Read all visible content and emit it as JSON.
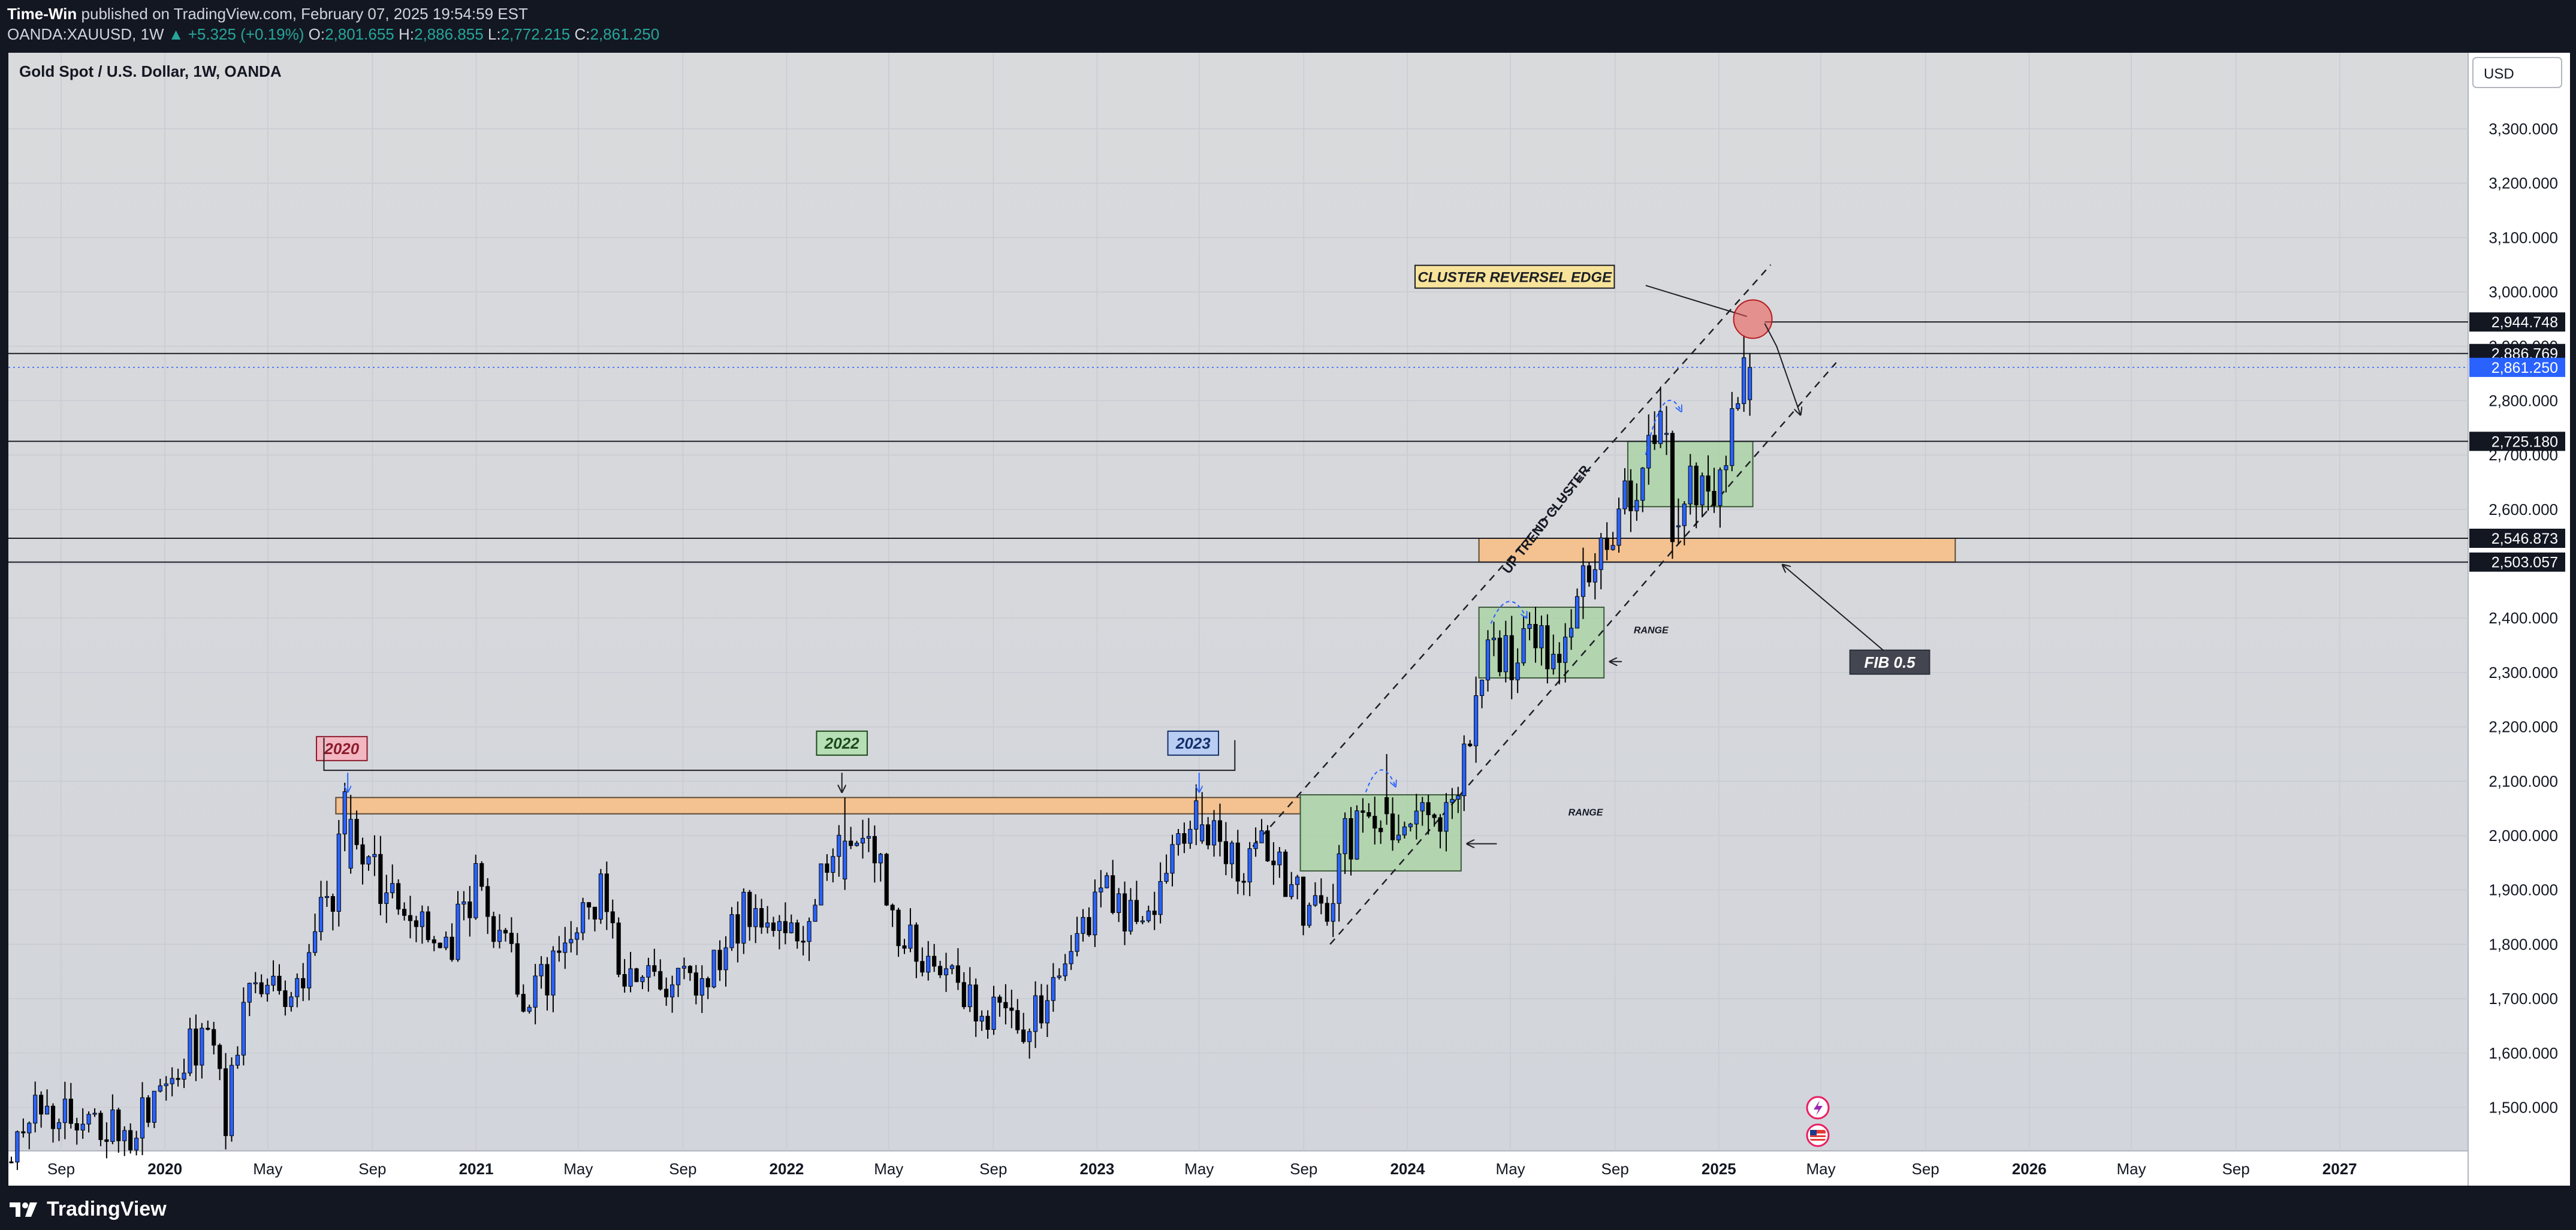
{
  "header": {
    "author": "Time-Win",
    "published_text": "published on TradingView.com, February 07, 2025 19:54:59 EST",
    "symbol": "OANDA:XAUUSD, 1W",
    "change": "▲ +5.325 (+0.19%)",
    "o_label": "O:",
    "o_value": "2,801.655",
    "h_label": "H:",
    "h_value": "2,886.855",
    "l_label": "L:",
    "l_value": "2,772.215",
    "c_label": "C:",
    "c_value": "2,861.250"
  },
  "chart_title": "Gold Spot / U.S. Dollar, 1W, OANDA",
  "currency_button": "USD",
  "footer": {
    "brand": "TradingView"
  },
  "colors": {
    "background": "#d6d8dd",
    "up": "#2962ff",
    "down": "#000000",
    "zone_orange": "#f4c18c",
    "zone_green": "#a9d3a4",
    "price_tag_current": "#2962ff"
  },
  "chart_data": {
    "type": "candlestick",
    "title": "Gold Spot / U.S. Dollar, 1W, OANDA",
    "ylim": [
      1420,
      3440
    ],
    "y_ticks": [
      1500,
      1600,
      1700,
      1800,
      1900,
      2000,
      2100,
      2200,
      2300,
      2400,
      2500,
      2600,
      2700,
      2800,
      2900,
      3000,
      3100,
      3200,
      3300
    ],
    "y_tick_labels": [
      "1,500.000",
      "1,600.000",
      "1,700.000",
      "1,800.000",
      "1,900.000",
      "2,000.000",
      "2,100.000",
      "2,200.000",
      "2,300.000",
      "2,400.000",
      "2,500.000",
      "2,600.000",
      "2,700.000",
      "2,800.000",
      "2,900.000",
      "3,000.000",
      "3,100.000",
      "3,200.000",
      "3,300.000"
    ],
    "xlim": [
      "2019-07-01",
      "2027-06-01"
    ],
    "x_ticks": [
      {
        "date": "2019-09-01",
        "label": "Sep",
        "bold": false
      },
      {
        "date": "2020-01-01",
        "label": "2020",
        "bold": true
      },
      {
        "date": "2020-05-01",
        "label": "May",
        "bold": false
      },
      {
        "date": "2020-09-01",
        "label": "Sep",
        "bold": false
      },
      {
        "date": "2021-01-01",
        "label": "2021",
        "bold": true
      },
      {
        "date": "2021-05-01",
        "label": "May",
        "bold": false
      },
      {
        "date": "2021-09-01",
        "label": "Sep",
        "bold": false
      },
      {
        "date": "2022-01-01",
        "label": "2022",
        "bold": true
      },
      {
        "date": "2022-05-01",
        "label": "May",
        "bold": false
      },
      {
        "date": "2022-09-01",
        "label": "Sep",
        "bold": false
      },
      {
        "date": "2023-01-01",
        "label": "2023",
        "bold": true
      },
      {
        "date": "2023-05-01",
        "label": "May",
        "bold": false
      },
      {
        "date": "2023-09-01",
        "label": "Sep",
        "bold": false
      },
      {
        "date": "2024-01-01",
        "label": "2024",
        "bold": true
      },
      {
        "date": "2024-05-01",
        "label": "May",
        "bold": false
      },
      {
        "date": "2024-09-01",
        "label": "Sep",
        "bold": false
      },
      {
        "date": "2025-01-01",
        "label": "2025",
        "bold": true
      },
      {
        "date": "2025-05-01",
        "label": "May",
        "bold": false
      },
      {
        "date": "2025-09-01",
        "label": "Sep",
        "bold": false
      },
      {
        "date": "2026-01-01",
        "label": "2026",
        "bold": true
      },
      {
        "date": "2026-05-01",
        "label": "May",
        "bold": false
      },
      {
        "date": "2026-09-01",
        "label": "Sep",
        "bold": false
      },
      {
        "date": "2027-01-01",
        "label": "2027",
        "bold": true
      }
    ],
    "price_path": [
      [
        "2019-07-01",
        1400
      ],
      [
        "2019-08-10",
        1505
      ],
      [
        "2019-10-01",
        1490
      ],
      [
        "2019-11-25",
        1460
      ],
      [
        "2020-01-06",
        1560
      ],
      [
        "2020-02-24",
        1640
      ],
      [
        "2020-03-16",
        1480
      ],
      [
        "2020-04-13",
        1720
      ],
      [
        "2020-06-01",
        1700
      ],
      [
        "2020-07-20",
        1900
      ],
      [
        "2020-08-03",
        2040
      ],
      [
        "2020-09-28",
        1870
      ],
      [
        "2020-11-09",
        1850
      ],
      [
        "2020-11-30",
        1780
      ],
      [
        "2021-01-04",
        1920
      ],
      [
        "2021-03-08",
        1690
      ],
      [
        "2021-05-31",
        1905
      ],
      [
        "2021-06-21",
        1770
      ],
      [
        "2021-08-09",
        1740
      ],
      [
        "2021-09-27",
        1745
      ],
      [
        "2021-11-15",
        1860
      ],
      [
        "2021-12-20",
        1800
      ],
      [
        "2022-01-24",
        1840
      ],
      [
        "2022-03-07",
        1990
      ],
      [
        "2022-04-18",
        1960
      ],
      [
        "2022-05-16",
        1810
      ],
      [
        "2022-07-04",
        1760
      ],
      [
        "2022-09-26",
        1640
      ],
      [
        "2022-11-07",
        1680
      ],
      [
        "2023-01-09",
        1900
      ],
      [
        "2023-02-27",
        1820
      ],
      [
        "2023-04-10",
        2000
      ],
      [
        "2023-05-08",
        2030
      ],
      [
        "2023-06-26",
        1920
      ],
      [
        "2023-07-17",
        1970
      ],
      [
        "2023-08-21",
        1900
      ],
      [
        "2023-10-02",
        1820
      ],
      [
        "2023-10-23",
        1990
      ],
      [
        "2023-12-04",
        2040
      ],
      [
        "2024-01-15",
        2020
      ],
      [
        "2024-02-19",
        2030
      ],
      [
        "2024-03-04",
        2100
      ],
      [
        "2024-04-08",
        2360
      ],
      [
        "2024-05-06",
        2320
      ],
      [
        "2024-05-27",
        2360
      ],
      [
        "2024-06-24",
        2320
      ],
      [
        "2024-07-15",
        2420
      ],
      [
        "2024-08-19",
        2510
      ],
      [
        "2024-09-23",
        2640
      ],
      [
        "2024-10-28",
        2740
      ],
      [
        "2024-11-11",
        2570
      ],
      [
        "2024-11-25",
        2650
      ],
      [
        "2024-12-23",
        2620
      ],
      [
        "2025-01-13",
        2700
      ],
      [
        "2025-02-03",
        2861.25
      ]
    ],
    "highlight_candles": [
      {
        "date": "2020-08-03",
        "open": 1940,
        "high": 2075,
        "low": 1930,
        "close": 2030
      },
      {
        "date": "2022-03-07",
        "open": 1920,
        "high": 2070,
        "low": 1900,
        "close": 1990
      },
      {
        "date": "2023-05-01",
        "open": 1990,
        "high": 2080,
        "low": 1985,
        "close": 2020
      },
      {
        "date": "2023-12-04",
        "open": 2070,
        "high": 2150,
        "low": 2020,
        "close": 2040
      },
      {
        "date": "2024-10-28",
        "open": 2740,
        "high": 2790,
        "low": 2700,
        "close": 2740
      },
      {
        "date": "2024-11-11",
        "open": 2570,
        "high": 2620,
        "low": 2536,
        "close": 2570
      },
      {
        "date": "2025-02-03",
        "open": 2801.655,
        "high": 2886.855,
        "low": 2772.215,
        "close": 2861.25
      }
    ],
    "horizontal_lines": [
      {
        "price": 2944.748,
        "label": "2,944.748",
        "x_start": "2025-02-24"
      },
      {
        "price": 2886.769,
        "label": "2,886.769",
        "x_start": "2019-07-01"
      },
      {
        "price": 2725.18,
        "label": "2,725.180",
        "x_start": "2019-07-01"
      },
      {
        "price": 2546.873,
        "label": "2,546.873",
        "x_start": "2019-07-01"
      },
      {
        "price": 2503.057,
        "label": "2,503.057",
        "x_start": "2019-07-01"
      }
    ],
    "current_price": {
      "price": 2861.25,
      "label": "2,861.250"
    },
    "zones": [
      {
        "type": "resistance",
        "color": "orange",
        "x1": "2020-07-20",
        "x2": "2023-08-28",
        "y1": 2040,
        "y2": 2070
      },
      {
        "type": "fib",
        "color": "orange",
        "x1": "2024-03-25",
        "x2": "2025-10-06",
        "y1": 2503.057,
        "y2": 2546.873
      },
      {
        "type": "range",
        "color": "green",
        "x1": "2023-08-28",
        "x2": "2024-03-04",
        "y1": 1935,
        "y2": 2075
      },
      {
        "type": "range",
        "color": "green",
        "x1": "2024-03-25",
        "x2": "2024-08-19",
        "y1": 2290,
        "y2": 2420
      },
      {
        "type": "range",
        "color": "green",
        "x1": "2024-09-16",
        "x2": "2025-02-10",
        "y1": 2605,
        "y2": 2725
      }
    ],
    "channel": {
      "lower": [
        [
          "2023-10-02",
          1800
        ],
        [
          "2025-05-19",
          2870
        ]
      ],
      "upper": [
        [
          "2023-07-03",
          1980
        ],
        [
          "2025-03-03",
          3050
        ]
      ]
    },
    "annotations": [
      {
        "text": "2020",
        "style": "red",
        "x": "2020-07-27",
        "y": 2160
      },
      {
        "text": "2022",
        "style": "green",
        "x": "2022-03-07",
        "y": 2170
      },
      {
        "text": "2023",
        "style": "blue",
        "x": "2023-04-24",
        "y": 2170
      },
      {
        "text": "UP TREND CLUSTER",
        "style": "rotated",
        "x": "2024-04-29",
        "y": 2480
      },
      {
        "text": "RANGE",
        "style": "plain",
        "x": "2024-07-08",
        "y": 2037
      },
      {
        "text": "RANGE",
        "style": "plain",
        "x": "2024-09-23",
        "y": 2372
      },
      {
        "text": "CLUSTER REVERSEL EDGE",
        "style": "yellow",
        "x": "2024-05-06",
        "y": 3028
      },
      {
        "text": "FIB 0.5",
        "style": "dark",
        "x": "2025-07-21",
        "y": 2319
      }
    ],
    "reversal_circle": {
      "x": "2025-02-10",
      "y": 2950
    }
  }
}
